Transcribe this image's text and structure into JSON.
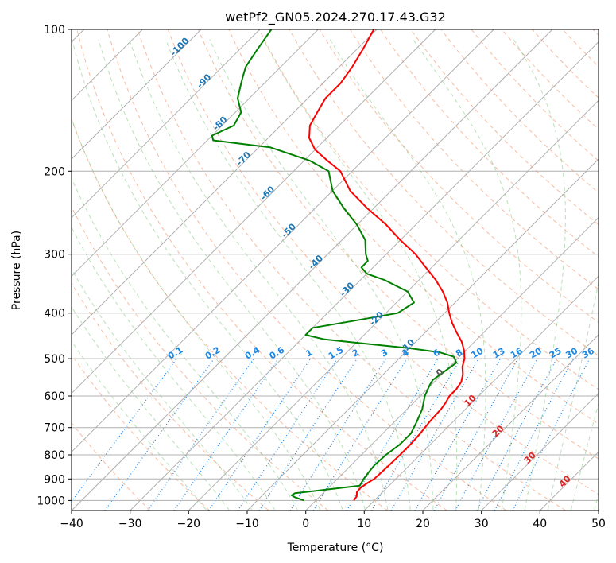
{
  "chart_data": {
    "type": "line",
    "title": "wetPf2_GN05.2024.270.17.43.G32",
    "xlabel": "Temperature (°C)",
    "ylabel": "Pressure (hPa)",
    "xlim": [
      -40,
      50
    ],
    "ylim": [
      1050,
      100
    ],
    "y_scale": "log",
    "x_ticks": [
      -40,
      -30,
      -20,
      -10,
      0,
      10,
      20,
      30,
      40,
      50
    ],
    "x_tick_labels": [
      "−40",
      "−30",
      "−20",
      "−10",
      "0",
      "10",
      "20",
      "30",
      "40",
      "50"
    ],
    "y_ticks": [
      100,
      200,
      300,
      400,
      500,
      600,
      700,
      800,
      900,
      1000
    ],
    "y_tick_labels": [
      "100",
      "200",
      "300",
      "400",
      "500",
      "600",
      "700",
      "800",
      "900",
      "1000"
    ],
    "grid": true,
    "skew_deg": 45,
    "series": [
      {
        "role": "temperature",
        "color": "#ff0000",
        "points": [
          [
            6.5,
            1000
          ],
          [
            6.3,
            980
          ],
          [
            5.6,
            960
          ],
          [
            5.5,
            940
          ],
          [
            5.8,
            920
          ],
          [
            6.3,
            900
          ],
          [
            6.4,
            870
          ],
          [
            6.5,
            840
          ],
          [
            6.6,
            800
          ],
          [
            6.6,
            760
          ],
          [
            6.4,
            720
          ],
          [
            6.0,
            680
          ],
          [
            5.8,
            640
          ],
          [
            5.5,
            620
          ],
          [
            5.0,
            600
          ],
          [
            5.0,
            580
          ],
          [
            4.6,
            560
          ],
          [
            3.6,
            540
          ],
          [
            2.2,
            520
          ],
          [
            1.2,
            500
          ],
          [
            -0.3,
            480
          ],
          [
            -2.2,
            460
          ],
          [
            -4.6,
            440
          ],
          [
            -7.0,
            420
          ],
          [
            -9.2,
            400
          ],
          [
            -11.3,
            380
          ],
          [
            -14.0,
            360
          ],
          [
            -17.2,
            340
          ],
          [
            -21.0,
            320
          ],
          [
            -25.0,
            300
          ],
          [
            -30.0,
            280
          ],
          [
            -35.0,
            260
          ],
          [
            -41.0,
            240
          ],
          [
            -47.0,
            220
          ],
          [
            -52.0,
            200
          ],
          [
            -56.0,
            190
          ],
          [
            -60.0,
            180
          ],
          [
            -63.0,
            170
          ],
          [
            -65.0,
            160
          ],
          [
            -66.0,
            150
          ],
          [
            -67.0,
            140
          ],
          [
            -67.0,
            130
          ],
          [
            -67.8,
            120
          ],
          [
            -69.0,
            110
          ],
          [
            -70.5,
            100
          ]
        ]
      },
      {
        "role": "dewpoint",
        "color": "#008000",
        "points": [
          [
            -2.0,
            1000
          ],
          [
            -4.0,
            985
          ],
          [
            -5.0,
            975
          ],
          [
            -4.8,
            965
          ],
          [
            -2.0,
            955
          ],
          [
            5.0,
            930
          ],
          [
            4.5,
            900
          ],
          [
            4.2,
            870
          ],
          [
            4.0,
            840
          ],
          [
            4.2,
            800
          ],
          [
            4.8,
            760
          ],
          [
            4.8,
            720
          ],
          [
            3.8,
            680
          ],
          [
            2.6,
            640
          ],
          [
            0.8,
            600
          ],
          [
            -0.2,
            570
          ],
          [
            -0.6,
            555
          ],
          [
            0.0,
            530
          ],
          [
            0.5,
            510
          ],
          [
            -1.0,
            495
          ],
          [
            -4.0,
            485
          ],
          [
            -10.0,
            475
          ],
          [
            -18.0,
            465
          ],
          [
            -26.0,
            455
          ],
          [
            -30.0,
            445
          ],
          [
            -30.0,
            430
          ],
          [
            -24.0,
            415
          ],
          [
            -18.0,
            400
          ],
          [
            -17.0,
            380
          ],
          [
            -20.0,
            360
          ],
          [
            -26.0,
            340
          ],
          [
            -30.0,
            330
          ],
          [
            -32.0,
            320
          ],
          [
            -32.0,
            310
          ],
          [
            -33.5,
            300
          ],
          [
            -36.0,
            280
          ],
          [
            -40.0,
            260
          ],
          [
            -45.0,
            240
          ],
          [
            -50.0,
            220
          ],
          [
            -54.0,
            200
          ],
          [
            -59.0,
            190
          ],
          [
            -68.0,
            178
          ],
          [
            -79.0,
            172
          ],
          [
            -80.0,
            168
          ],
          [
            -78.0,
            160
          ],
          [
            -79.0,
            150
          ],
          [
            -82.0,
            140
          ],
          [
            -84.0,
            130
          ],
          [
            -85.0,
            125
          ],
          [
            -86.0,
            120
          ],
          [
            -87.0,
            110
          ],
          [
            -88.0,
            100
          ]
        ]
      }
    ],
    "mixing_ratio_lines": {
      "color": "#1e88e5",
      "values": [
        0.1,
        0.2,
        0.4,
        0.6,
        1,
        1.5,
        2,
        3,
        4,
        6,
        8,
        10,
        13,
        16,
        20,
        25,
        30,
        36
      ],
      "labels": [
        "0.1",
        "0.2",
        "0.4",
        "0.6",
        "1",
        "1.5",
        "2",
        "3",
        "4",
        "6",
        "8",
        "10",
        "13",
        "16",
        "20",
        "25",
        "30",
        "36"
      ],
      "label_pressure": 500
    },
    "moist_adiabat_labels": {
      "color": "#1f77b4",
      "items": [
        {
          "text": "-100",
          "t": -100,
          "p": 110
        },
        {
          "text": "-90",
          "t": -90,
          "p": 130
        },
        {
          "text": "-80",
          "t": -80,
          "p": 160
        },
        {
          "text": "-70",
          "t": -70,
          "p": 190
        },
        {
          "text": "-60",
          "t": -60,
          "p": 225
        },
        {
          "text": "-50",
          "t": -50,
          "p": 270
        },
        {
          "text": "-40",
          "t": -40,
          "p": 315
        },
        {
          "text": "-30",
          "t": -30,
          "p": 360
        },
        {
          "text": "-20",
          "t": -20,
          "p": 415
        },
        {
          "text": "-10",
          "t": -10,
          "p": 475
        }
      ]
    },
    "dry_adiabat_labels": [
      {
        "text": "0",
        "t": 0,
        "p": 540,
        "color": "#555555"
      },
      {
        "text": "10",
        "t": 10,
        "p": 620,
        "color": "#d62728"
      },
      {
        "text": "20",
        "t": 20,
        "p": 720,
        "color": "#d62728"
      },
      {
        "text": "30",
        "t": 30,
        "p": 820,
        "color": "#d62728"
      },
      {
        "text": "40",
        "t": 40,
        "p": 920,
        "color": "#d62728"
      }
    ]
  }
}
